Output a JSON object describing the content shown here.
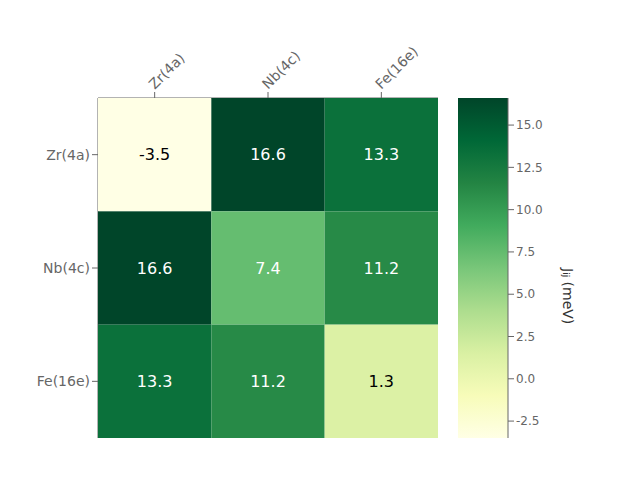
{
  "chart_data": {
    "type": "heatmap",
    "categories": [
      "Zr(4a)",
      "Nb(4c)",
      "Fe(16e)"
    ],
    "rows": [
      "Zr(4a)",
      "Nb(4c)",
      "Fe(16e)"
    ],
    "values": [
      [
        -3.5,
        16.6,
        13.3
      ],
      [
        16.6,
        7.4,
        11.2
      ],
      [
        13.3,
        11.2,
        1.3
      ]
    ],
    "data_labels": true,
    "colorbar": {
      "label": "Jᵢⱼ (meV)",
      "range": [
        -3.5,
        16.6
      ],
      "ticks": [
        -2.5,
        {
          "value": 0.0,
          "label": "0.0"
        },
        2.5,
        {
          "value": 5.0,
          "label": "5.0"
        },
        7.5,
        {
          "value": 10.0,
          "label": "10.0"
        },
        12.5,
        {
          "value": 15.0,
          "label": "15.0"
        }
      ]
    }
  }
}
